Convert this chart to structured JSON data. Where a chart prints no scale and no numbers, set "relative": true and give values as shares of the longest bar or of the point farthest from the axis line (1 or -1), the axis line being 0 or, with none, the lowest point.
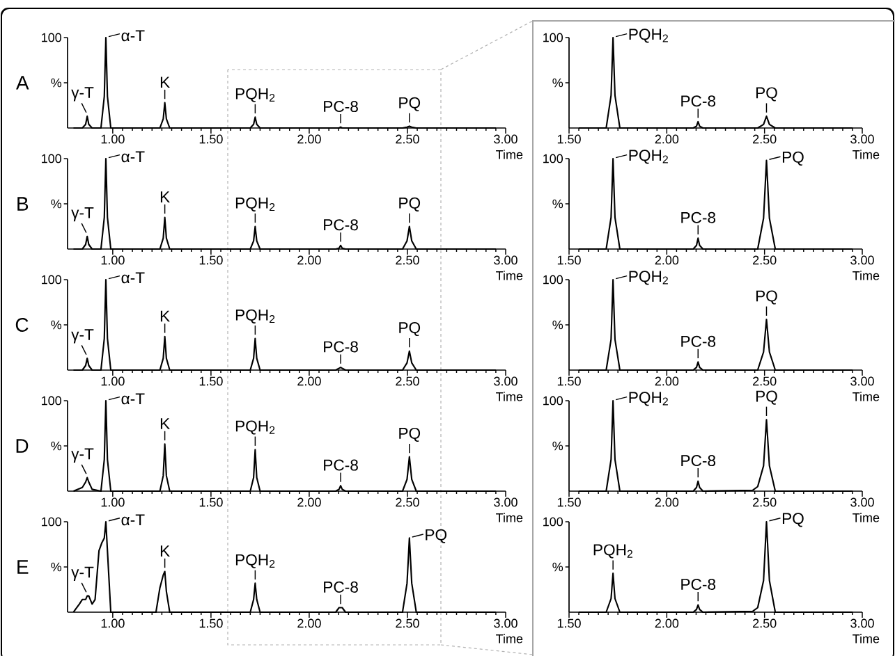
{
  "chart_data": [
    {
      "type": "line",
      "relative": true,
      "title": "A",
      "xlabel": "Time",
      "color": "#000000",
      "xlim": [
        0.77,
        3.0
      ],
      "xticks": [
        {
          "value": 1,
          "label": "1.00"
        },
        {
          "value": 1.5,
          "label": "1.50"
        },
        {
          "value": 2,
          "label": "2.00"
        },
        {
          "value": 2.5,
          "label": "2.50"
        },
        {
          "value": 3,
          "label": "3.00"
        }
      ],
      "x": [
        0.8,
        0.845,
        0.862,
        0.87,
        0.878,
        0.895,
        0.94,
        0.957,
        0.965,
        0.973,
        0.99,
        1.24,
        1.257,
        1.265,
        1.273,
        1.29,
        1.7,
        1.717,
        1.725,
        1.733,
        1.75,
        2.135,
        2.152,
        2.16,
        2.168,
        2.185,
        2.475,
        2.498,
        2.51,
        2.522,
        2.545,
        2.95
      ],
      "values": [
        0,
        0,
        0.04,
        0.13,
        0.04,
        0,
        0,
        0.35,
        1,
        0.35,
        0,
        0,
        0.1,
        0.28,
        0.1,
        0,
        0,
        0.04,
        0.12,
        0.04,
        0,
        0,
        0,
        0.01,
        0,
        0,
        0,
        0.01,
        0.02,
        0.01,
        0,
        0
      ],
      "annotations": [
        {
          "text": "γ-T",
          "x": 0.87,
          "y": 0.13
        },
        {
          "text": "α-T",
          "x": 0.965,
          "y": 1
        },
        {
          "text": "K",
          "x": 1.265,
          "y": 0.28
        },
        {
          "text": "PQH$_{2}$",
          "x": 1.725,
          "y": 0.12
        },
        {
          "text": "PC-8",
          "x": 2.16,
          "y": 0.01
        },
        {
          "text": "PQ",
          "x": 2.51,
          "y": 0.02
        },
        "100",
        "%"
      ]
    },
    {
      "type": "line",
      "relative": true,
      "xlabel": "Time",
      "color": "#000000",
      "xlim": [
        1.5,
        3.0
      ],
      "xticks": [
        {
          "value": 1.5,
          "label": "1.50"
        },
        {
          "value": 2,
          "label": "2.00"
        },
        {
          "value": 2.5,
          "label": "2.50"
        },
        {
          "value": 3,
          "label": "3.00"
        }
      ],
      "x": [
        1.55,
        1.69,
        1.715,
        1.725,
        1.735,
        1.76,
        2.135,
        2.152,
        2.16,
        2.168,
        2.185,
        2.465,
        2.495,
        2.51,
        2.525,
        2.555,
        2.95
      ],
      "values": [
        0,
        0,
        0.36,
        1,
        0.36,
        0,
        0,
        0.02,
        0.07,
        0.02,
        0,
        0,
        0.04,
        0.13,
        0.04,
        0,
        0
      ],
      "annotations": [
        {
          "text": "PQH$_{2}$",
          "x": 1.725,
          "y": 1
        },
        {
          "text": "PC-8",
          "x": 2.16,
          "y": 0.07
        },
        {
          "text": "PQ",
          "x": 2.51,
          "y": 0.13
        },
        "100",
        "%"
      ]
    },
    {
      "type": "line",
      "relative": true,
      "title": "B",
      "xlabel": "Time",
      "color": "#000000",
      "xlim": [
        0.77,
        3.0
      ],
      "xticks": [
        {
          "value": 1,
          "label": "1.00"
        },
        {
          "value": 1.5,
          "label": "1.50"
        },
        {
          "value": 2,
          "label": "2.00"
        },
        {
          "value": 2.5,
          "label": "2.50"
        },
        {
          "value": 3,
          "label": "3.00"
        }
      ],
      "x": [
        0.8,
        0.845,
        0.862,
        0.87,
        0.878,
        0.895,
        0.94,
        0.957,
        0.965,
        0.973,
        0.99,
        1.24,
        1.257,
        1.265,
        1.273,
        1.29,
        1.7,
        1.717,
        1.725,
        1.733,
        1.75,
        2.135,
        2.152,
        2.16,
        2.168,
        2.185,
        2.475,
        2.498,
        2.51,
        2.522,
        2.545,
        2.95
      ],
      "values": [
        0,
        0,
        0.05,
        0.14,
        0.05,
        0,
        0,
        0.35,
        1,
        0.35,
        0,
        0,
        0.12,
        0.35,
        0.12,
        0,
        0,
        0.09,
        0.25,
        0.09,
        0,
        0,
        0.01,
        0.04,
        0.01,
        0,
        0,
        0.09,
        0.25,
        0.09,
        0,
        0
      ],
      "annotations": [
        {
          "text": "γ-T",
          "x": 0.87,
          "y": 0.14
        },
        {
          "text": "α-T",
          "x": 0.965,
          "y": 1
        },
        {
          "text": "K",
          "x": 1.265,
          "y": 0.35
        },
        {
          "text": "PQH$_{2}$",
          "x": 1.725,
          "y": 0.25
        },
        {
          "text": "PC-8",
          "x": 2.16,
          "y": 0.04
        },
        {
          "text": "PQ",
          "x": 2.51,
          "y": 0.25
        },
        "100",
        "%"
      ]
    },
    {
      "type": "line",
      "relative": true,
      "xlabel": "Time",
      "color": "#000000",
      "xlim": [
        1.5,
        3.0
      ],
      "xticks": [
        {
          "value": 1.5,
          "label": "1.50"
        },
        {
          "value": 2,
          "label": "2.00"
        },
        {
          "value": 2.5,
          "label": "2.50"
        },
        {
          "value": 3,
          "label": "3.00"
        }
      ],
      "x": [
        1.55,
        1.69,
        1.715,
        1.725,
        1.735,
        1.76,
        2.135,
        2.152,
        2.16,
        2.168,
        2.185,
        2.465,
        2.495,
        2.51,
        2.525,
        2.555,
        2.95
      ],
      "values": [
        0,
        0,
        0.35,
        1,
        0.35,
        0,
        0,
        0.04,
        0.12,
        0.04,
        0,
        0,
        0.34,
        0.98,
        0.34,
        0,
        0
      ],
      "annotations": [
        {
          "text": "PQH$_{2}$",
          "x": 1.725,
          "y": 1
        },
        {
          "text": "PC-8",
          "x": 2.16,
          "y": 0.12
        },
        {
          "text": "PQ",
          "x": 2.51,
          "y": 0.98
        },
        "100",
        "%"
      ]
    },
    {
      "type": "line",
      "relative": true,
      "title": "C",
      "xlabel": "Time",
      "color": "#000000",
      "xlim": [
        0.77,
        3.0
      ],
      "xticks": [
        {
          "value": 1,
          "label": "1.00"
        },
        {
          "value": 1.5,
          "label": "1.50"
        },
        {
          "value": 2,
          "label": "2.00"
        },
        {
          "value": 2.5,
          "label": "2.50"
        },
        {
          "value": 3,
          "label": "3.00"
        }
      ],
      "x": [
        0.8,
        0.845,
        0.862,
        0.87,
        0.878,
        0.895,
        0.94,
        0.957,
        0.965,
        0.973,
        0.99,
        1.24,
        1.257,
        1.265,
        1.273,
        1.29,
        1.7,
        1.717,
        1.725,
        1.733,
        1.75,
        2.135,
        2.152,
        2.16,
        2.168,
        2.185,
        2.475,
        2.498,
        2.51,
        2.522,
        2.545,
        2.95
      ],
      "values": [
        0,
        0,
        0.05,
        0.13,
        0.05,
        0,
        0,
        0.35,
        1,
        0.35,
        0,
        0,
        0.13,
        0.37,
        0.13,
        0,
        0,
        0.13,
        0.35,
        0.13,
        0,
        0,
        0.02,
        0.03,
        0.02,
        0,
        0,
        0.08,
        0.21,
        0.08,
        0,
        0
      ],
      "annotations": [
        {
          "text": "γ-T",
          "x": 0.87,
          "y": 0.13
        },
        {
          "text": "α-T",
          "x": 0.965,
          "y": 1
        },
        {
          "text": "K",
          "x": 1.265,
          "y": 0.37
        },
        {
          "text": "PQH$_{2}$",
          "x": 1.725,
          "y": 0.35
        },
        {
          "text": "PC-8",
          "x": 2.16,
          "y": 0.03
        },
        {
          "text": "PQ",
          "x": 2.51,
          "y": 0.21
        },
        "100",
        "%"
      ]
    },
    {
      "type": "line",
      "relative": true,
      "xlabel": "Time",
      "color": "#000000",
      "xlim": [
        1.5,
        3.0
      ],
      "xticks": [
        {
          "value": 1.5,
          "label": "1.50"
        },
        {
          "value": 2,
          "label": "2.00"
        },
        {
          "value": 2.5,
          "label": "2.50"
        },
        {
          "value": 3,
          "label": "3.00"
        }
      ],
      "x": [
        1.55,
        1.69,
        1.715,
        1.725,
        1.735,
        1.76,
        2.135,
        2.152,
        2.16,
        2.168,
        2.185,
        2.465,
        2.495,
        2.51,
        2.525,
        2.555,
        2.95
      ],
      "values": [
        0,
        0,
        0.34,
        1,
        0.34,
        0,
        0,
        0.03,
        0.09,
        0.03,
        0,
        0,
        0.2,
        0.56,
        0.2,
        0,
        0
      ],
      "annotations": [
        {
          "text": "PQH$_{2}$",
          "x": 1.725,
          "y": 1
        },
        {
          "text": "PC-8",
          "x": 2.16,
          "y": 0.09
        },
        {
          "text": "PQ",
          "x": 2.51,
          "y": 0.56
        },
        "100",
        "%"
      ]
    },
    {
      "type": "line",
      "relative": true,
      "title": "D",
      "xlabel": "Time",
      "color": "#000000",
      "xlim": [
        0.77,
        3.0
      ],
      "xticks": [
        {
          "value": 1,
          "label": "1.00"
        },
        {
          "value": 1.5,
          "label": "1.50"
        },
        {
          "value": 2,
          "label": "2.00"
        },
        {
          "value": 2.5,
          "label": "2.50"
        },
        {
          "value": 3,
          "label": "3.00"
        }
      ],
      "x": [
        0.8,
        0.845,
        0.862,
        0.87,
        0.878,
        0.895,
        0.94,
        0.957,
        0.965,
        0.973,
        0.99,
        1.24,
        1.257,
        1.265,
        1.273,
        1.29,
        1.7,
        1.717,
        1.725,
        1.733,
        1.75,
        2.135,
        2.152,
        2.16,
        2.168,
        2.185,
        2.475,
        2.498,
        2.51,
        2.522,
        2.545,
        2.95
      ],
      "values": [
        0,
        0.04,
        0.1,
        0.15,
        0.1,
        0.02,
        0,
        0.35,
        1,
        0.35,
        0,
        0,
        0.17,
        0.52,
        0.17,
        0,
        0,
        0.15,
        0.46,
        0.15,
        0,
        0,
        0.02,
        0.06,
        0.02,
        0,
        0,
        0.13,
        0.38,
        0.13,
        0,
        0
      ],
      "annotations": [
        {
          "text": "γ-T",
          "x": 0.87,
          "y": 0.15
        },
        {
          "text": "α-T",
          "x": 0.965,
          "y": 1
        },
        {
          "text": "K",
          "x": 1.265,
          "y": 0.52
        },
        {
          "text": "PQH$_{2}$",
          "x": 1.725,
          "y": 0.46
        },
        {
          "text": "PC-8",
          "x": 2.16,
          "y": 0.06
        },
        {
          "text": "PQ",
          "x": 2.51,
          "y": 0.38
        },
        "100",
        "%"
      ]
    },
    {
      "type": "line",
      "relative": true,
      "xlabel": "Time",
      "color": "#000000",
      "xlim": [
        1.5,
        3.0
      ],
      "xticks": [
        {
          "value": 1.5,
          "label": "1.50"
        },
        {
          "value": 2,
          "label": "2.00"
        },
        {
          "value": 2.5,
          "label": "2.50"
        },
        {
          "value": 3,
          "label": "3.00"
        }
      ],
      "x": [
        1.55,
        1.69,
        1.715,
        1.725,
        1.735,
        1.76,
        2.135,
        2.152,
        2.16,
        2.168,
        2.185,
        2.44,
        2.465,
        2.495,
        2.51,
        2.525,
        2.555,
        2.95
      ],
      "values": [
        0,
        0,
        0.35,
        1,
        0.35,
        0,
        0,
        0.04,
        0.11,
        0.04,
        0,
        0.01,
        0.05,
        0.28,
        0.79,
        0.28,
        0,
        0
      ],
      "annotations": [
        {
          "text": "PQH$_{2}$",
          "x": 1.725,
          "y": 1
        },
        {
          "text": "PC-8",
          "x": 2.16,
          "y": 0.11
        },
        {
          "text": "PQ",
          "x": 2.51,
          "y": 0.79
        },
        "100",
        "%"
      ]
    },
    {
      "type": "line",
      "relative": true,
      "title": "E",
      "xlabel": "Time",
      "color": "#000000",
      "xlim": [
        0.77,
        3.0
      ],
      "xticks": [
        {
          "value": 1,
          "label": "1.00"
        },
        {
          "value": 1.5,
          "label": "1.50"
        },
        {
          "value": 2,
          "label": "2.00"
        },
        {
          "value": 2.5,
          "label": "2.50"
        },
        {
          "value": 3,
          "label": "3.00"
        }
      ],
      "x": [
        0.8,
        0.83,
        0.845,
        0.862,
        0.87,
        0.878,
        0.895,
        0.91,
        0.93,
        0.945,
        0.957,
        0.965,
        0.973,
        0.99,
        1.22,
        1.24,
        1.257,
        1.265,
        1.273,
        1.29,
        1.7,
        1.717,
        1.725,
        1.733,
        1.75,
        2.135,
        2.152,
        2.16,
        2.168,
        2.185,
        2.475,
        2.498,
        2.51,
        2.522,
        2.545,
        2.95
      ],
      "values": [
        0,
        0.09,
        0.14,
        0.14,
        0.18,
        0.18,
        0.09,
        0.14,
        0.68,
        0.77,
        0.82,
        1,
        0.68,
        0,
        0,
        0.27,
        0.41,
        0.45,
        0.23,
        0,
        0,
        0.14,
        0.32,
        0.14,
        0,
        0,
        0.05,
        0.05,
        0.05,
        0,
        0,
        0.32,
        0.82,
        0.32,
        0,
        0
      ],
      "annotations": [
        {
          "text": "γ-T",
          "x": 0.87,
          "y": 0.18
        },
        {
          "text": "α-T",
          "x": 0.965,
          "y": 1
        },
        {
          "text": "K",
          "x": 1.265,
          "y": 0.45
        },
        {
          "text": "PQH$_{2}$",
          "x": 1.725,
          "y": 0.32
        },
        {
          "text": "PC-8",
          "x": 2.16,
          "y": 0.05
        },
        {
          "text": "PQ",
          "x": 2.51,
          "y": 0.82
        },
        "100",
        "%"
      ]
    },
    {
      "type": "line",
      "relative": true,
      "xlabel": "Time",
      "color": "#000000",
      "xlim": [
        1.5,
        3.0
      ],
      "xticks": [
        {
          "value": 1.5,
          "label": "1.50"
        },
        {
          "value": 2,
          "label": "2.00"
        },
        {
          "value": 2.5,
          "label": "2.50"
        },
        {
          "value": 3,
          "label": "3.00"
        }
      ],
      "x": [
        1.55,
        1.69,
        1.715,
        1.725,
        1.735,
        1.76,
        2.135,
        2.152,
        2.16,
        2.168,
        2.185,
        2.44,
        2.465,
        2.495,
        2.51,
        2.525,
        2.555,
        2.95
      ],
      "values": [
        0,
        0,
        0.15,
        0.43,
        0.15,
        0,
        0,
        0.03,
        0.08,
        0.03,
        0,
        0.01,
        0.05,
        0.35,
        1,
        0.35,
        0,
        0
      ],
      "annotations": [
        {
          "text": "PQH$_{2}$",
          "x": 1.725,
          "y": 0.43
        },
        {
          "text": "PC-8",
          "x": 2.16,
          "y": 0.08
        },
        {
          "text": "PQ",
          "x": 2.51,
          "y": 1
        },
        "100",
        "%"
      ]
    }
  ]
}
